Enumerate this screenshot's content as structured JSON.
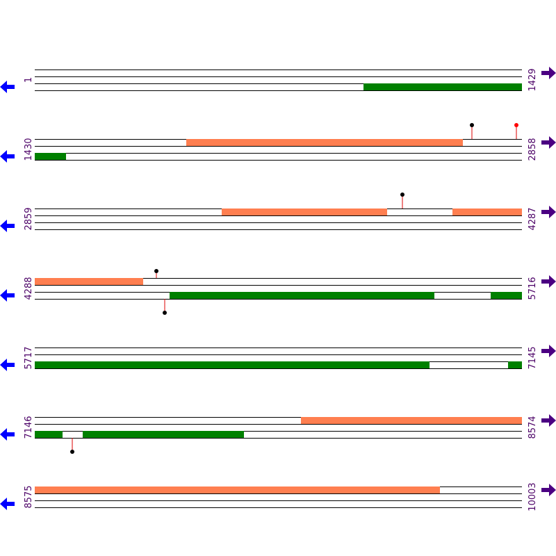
{
  "rows": [
    {
      "start": 1,
      "end": 1429
    },
    {
      "start": 1430,
      "end": 2858
    },
    {
      "start": 2859,
      "end": 4287
    },
    {
      "start": 4288,
      "end": 5716
    },
    {
      "start": 5717,
      "end": 7145
    },
    {
      "start": 7146,
      "end": 8574
    },
    {
      "start": 8575,
      "end": 10003
    }
  ]
}
